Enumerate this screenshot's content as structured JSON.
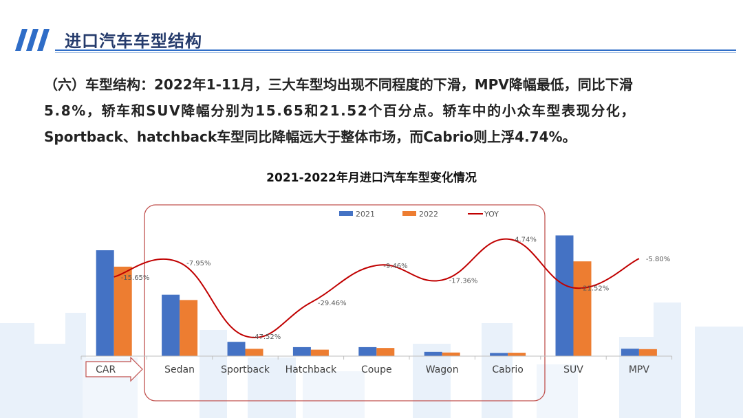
{
  "header": {
    "title": "进口汽车车型结构"
  },
  "body_lines": [
    "（六）车型结构：2022年1-11月，三大车型均出现不同程度的下滑，MPV降幅最低，同比下滑",
    "5.8%，轿车和SUV降幅分别为15.65和21.52个百分点。轿车中的小众车型表现分化，",
    "Sportback、hatchback车型同比降幅远大于整体市场，而Cabrio则上浮4.74%。"
  ],
  "colors": {
    "s2021": "#4472c4",
    "s2022": "#ed7d31",
    "yoy": "#c00000",
    "box": "#c0504d"
  },
  "chart_data": {
    "type": "bar",
    "title": "2021-2022年月进口汽车车型变化情况",
    "categories": [
      "CAR",
      "Sedan",
      "Sportback",
      "Hatchback",
      "Coupe",
      "Wagon",
      "Cabrio",
      "SUV",
      "MPV"
    ],
    "series": [
      {
        "name": "2021",
        "type": "bar",
        "values": [
          100,
          58,
          13.5,
          8.5,
          8.5,
          4.0,
          3.0,
          114,
          7.0
        ]
      },
      {
        "name": "2022",
        "type": "bar",
        "values": [
          84.5,
          53,
          6.9,
          6.1,
          7.7,
          3.4,
          3.2,
          89.5,
          6.6
        ]
      },
      {
        "name": "YOY",
        "type": "line",
        "values": [
          -15.65,
          -7.95,
          -47.52,
          -29.46,
          -9.46,
          -17.36,
          4.74,
          -21.52,
          -5.8
        ],
        "labels": [
          "-15.65%",
          "-7.95%",
          "-47.52%",
          "-29.46%",
          "-9.46%",
          "-17.36%",
          "4.74%",
          "-21.52%",
          "-5.80%"
        ]
      }
    ],
    "legend": [
      "2021",
      "2022",
      "YOY"
    ],
    "legend_position": "top",
    "grid": false
  }
}
